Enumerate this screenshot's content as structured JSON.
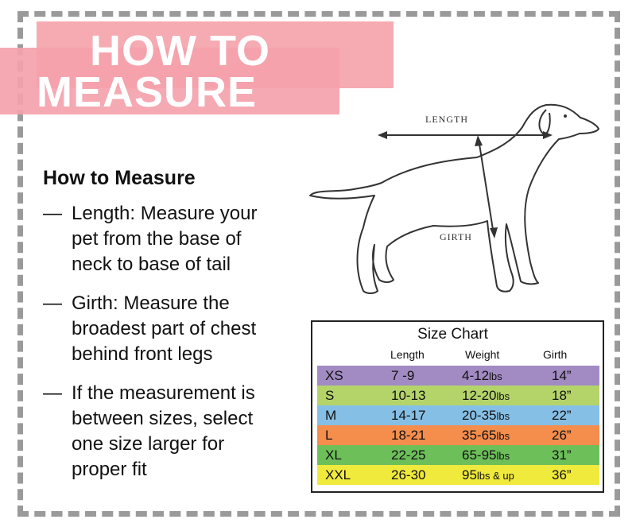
{
  "banner": {
    "line1": "HOW TO",
    "line2": "MEASURE"
  },
  "section_title": "How to Measure",
  "instructions": [
    {
      "dash": "—",
      "text": "Length: Measure your\npet from the base of\nneck to base of tail"
    },
    {
      "dash": "—",
      "text": "Girth: Measure the\nbroadest part of chest\nbehind front legs"
    },
    {
      "dash": "—",
      "text": "If the measurement is\nbetween sizes, select\none size larger for\nproper fit"
    }
  ],
  "diagram": {
    "length_label": "LENGTH",
    "girth_label": "GIRTH"
  },
  "size_chart": {
    "title": "Size Chart",
    "headers": [
      "Length",
      "Weight",
      "Girth"
    ],
    "rows": [
      {
        "size": "XS",
        "length": "7 -9",
        "weight": "4-12",
        "weight_unit": "lbs",
        "girth": "14”",
        "color": "#a28ac3"
      },
      {
        "size": "S",
        "length": "10-13",
        "weight": "12-20",
        "weight_unit": "lbs",
        "girth": "18”",
        "color": "#b4d46a"
      },
      {
        "size": "M",
        "length": "14-17",
        "weight": "20-35",
        "weight_unit": "lbs",
        "girth": "22”",
        "color": "#86bfe6"
      },
      {
        "size": "L",
        "length": "18-21",
        "weight": "35-65",
        "weight_unit": "lbs",
        "girth": "26”",
        "color": "#f58d4c"
      },
      {
        "size": "XL",
        "length": "22-25",
        "weight": "65-95",
        "weight_unit": "lbs",
        "girth": "31”",
        "color": "#6cbf59"
      },
      {
        "size": "XXL",
        "length": "26-30",
        "weight": "95",
        "weight_unit": "lbs & up",
        "girth": "36”",
        "color": "#f0ea3c"
      }
    ]
  }
}
